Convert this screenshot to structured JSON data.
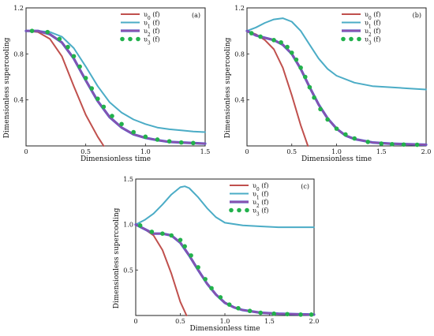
{
  "colors": {
    "v0": "#c0504d",
    "v1": "#4bacc6",
    "v2_outer": "#5a5ac8",
    "v2_inner": "#9b4fa5",
    "v3": "#22b14c"
  },
  "chart_data": [
    {
      "type": "line",
      "panel_label": "(a)",
      "xlabel": "Dimensionless time",
      "ylabel": "Dimensionless supercooling",
      "xlim": [
        0,
        1.5
      ],
      "ylim": [
        0,
        1.2
      ],
      "xticks": [
        0,
        0.5,
        1.0,
        1.5
      ],
      "xtick_labels": [
        "0",
        "0.5",
        "1.0",
        "1.5"
      ],
      "yticks": [
        0.4,
        0.8,
        1.2
      ],
      "ytick_labels": [
        "0.4",
        "0.8",
        "1.2"
      ],
      "legend_position": "top-right",
      "series": [
        {
          "name": "υ0 (f)",
          "style": "line",
          "color_key": "v0",
          "x": [
            0,
            0.1,
            0.2,
            0.3,
            0.4,
            0.5,
            0.6,
            0.65
          ],
          "y": [
            1.0,
            0.99,
            0.93,
            0.78,
            0.52,
            0.27,
            0.08,
            0.0
          ]
        },
        {
          "name": "υ1 (f)",
          "style": "line",
          "color_key": "v1",
          "x": [
            0,
            0.1,
            0.2,
            0.3,
            0.4,
            0.5,
            0.6,
            0.7,
            0.8,
            0.9,
            1.0,
            1.1,
            1.2,
            1.3,
            1.4,
            1.5
          ],
          "y": [
            1.0,
            1.0,
            0.99,
            0.95,
            0.85,
            0.69,
            0.52,
            0.38,
            0.29,
            0.23,
            0.19,
            0.16,
            0.145,
            0.135,
            0.125,
            0.12
          ]
        },
        {
          "name": "υ2 (f)",
          "style": "line",
          "color_key": "v2",
          "x": [
            0,
            0.1,
            0.2,
            0.3,
            0.4,
            0.5,
            0.6,
            0.7,
            0.8,
            0.9,
            1.0,
            1.1,
            1.2,
            1.3,
            1.4,
            1.5
          ],
          "y": [
            1.0,
            1.0,
            0.97,
            0.9,
            0.76,
            0.57,
            0.39,
            0.25,
            0.16,
            0.1,
            0.07,
            0.05,
            0.035,
            0.03,
            0.025,
            0.02
          ]
        },
        {
          "name": "υ3 (f)",
          "style": "dots",
          "color_key": "v3",
          "x": [
            0.05,
            0.18,
            0.28,
            0.35,
            0.4,
            0.45,
            0.5,
            0.55,
            0.6,
            0.65,
            0.72,
            0.8,
            0.9,
            1.0,
            1.1,
            1.2,
            1.3,
            1.4
          ],
          "y": [
            1.0,
            0.99,
            0.93,
            0.86,
            0.78,
            0.69,
            0.59,
            0.5,
            0.41,
            0.34,
            0.26,
            0.19,
            0.12,
            0.08,
            0.055,
            0.04,
            0.03,
            0.025
          ]
        }
      ]
    },
    {
      "type": "line",
      "panel_label": "(b)",
      "xlabel": "Dimensionless time",
      "ylabel": "Dimensionless supercooling",
      "xlim": [
        0,
        2.0
      ],
      "ylim": [
        0,
        1.2
      ],
      "xticks": [
        0,
        0.5,
        1.0,
        1.5,
        2.0
      ],
      "xtick_labels": [
        "0",
        "0.5",
        "1.0",
        "1.5",
        "2.0"
      ],
      "yticks": [
        0.4,
        0.8,
        1.2
      ],
      "ytick_labels": [
        "0.4",
        "0.8",
        "1.2"
      ],
      "legend_position": "top-right",
      "series": [
        {
          "name": "υ0 (f)",
          "style": "line",
          "color_key": "v0",
          "x": [
            0,
            0.1,
            0.2,
            0.3,
            0.4,
            0.5,
            0.6,
            0.68
          ],
          "y": [
            1.0,
            0.97,
            0.92,
            0.84,
            0.68,
            0.44,
            0.18,
            0.0
          ]
        },
        {
          "name": "υ1 (f)",
          "style": "line",
          "color_key": "v1",
          "x": [
            0,
            0.1,
            0.2,
            0.3,
            0.4,
            0.5,
            0.6,
            0.7,
            0.8,
            0.9,
            1.0,
            1.2,
            1.4,
            1.6,
            1.8,
            2.0
          ],
          "y": [
            1.0,
            1.03,
            1.07,
            1.1,
            1.11,
            1.08,
            1.0,
            0.88,
            0.76,
            0.67,
            0.61,
            0.55,
            0.52,
            0.51,
            0.5,
            0.49
          ]
        },
        {
          "name": "υ2 (f)",
          "style": "line",
          "color_key": "v2",
          "x": [
            0,
            0.1,
            0.2,
            0.3,
            0.4,
            0.5,
            0.6,
            0.7,
            0.8,
            0.9,
            1.0,
            1.1,
            1.2,
            1.4,
            1.6,
            1.8,
            2.0
          ],
          "y": [
            1.0,
            0.96,
            0.94,
            0.92,
            0.88,
            0.8,
            0.67,
            0.51,
            0.36,
            0.24,
            0.15,
            0.09,
            0.06,
            0.03,
            0.02,
            0.015,
            0.01
          ]
        },
        {
          "name": "υ3 (f)",
          "style": "dots",
          "color_key": "v3",
          "x": [
            0.05,
            0.15,
            0.3,
            0.38,
            0.45,
            0.5,
            0.55,
            0.6,
            0.65,
            0.7,
            0.75,
            0.82,
            0.9,
            1.0,
            1.1,
            1.2,
            1.35,
            1.5,
            1.62,
            1.75,
            1.9
          ],
          "y": [
            0.98,
            0.95,
            0.92,
            0.9,
            0.86,
            0.81,
            0.75,
            0.68,
            0.6,
            0.51,
            0.42,
            0.32,
            0.23,
            0.15,
            0.1,
            0.065,
            0.035,
            0.02,
            0.015,
            0.012,
            0.01
          ]
        }
      ]
    },
    {
      "type": "line",
      "panel_label": "(c)",
      "xlabel": "Dimensionless time",
      "ylabel": "Dimensionless supercooling",
      "xlim": [
        0,
        2.0
      ],
      "ylim": [
        0,
        1.5
      ],
      "xticks": [
        0,
        0.5,
        1.0,
        1.5,
        2.0
      ],
      "xtick_labels": [
        "0",
        "0.5",
        "1.0",
        "1.5",
        "2.0"
      ],
      "yticks": [
        0.5,
        1.0,
        1.5
      ],
      "ytick_labels": [
        "0.5",
        "1.0",
        "1.5"
      ],
      "legend_position": "top-right",
      "series": [
        {
          "name": "υ0 (f)",
          "style": "line",
          "color_key": "v0",
          "x": [
            0,
            0.1,
            0.2,
            0.3,
            0.4,
            0.5,
            0.57
          ],
          "y": [
            1.0,
            0.95,
            0.88,
            0.72,
            0.46,
            0.15,
            0.0
          ]
        },
        {
          "name": "υ1 (f)",
          "style": "line",
          "color_key": "v1",
          "x": [
            0,
            0.1,
            0.2,
            0.3,
            0.4,
            0.5,
            0.55,
            0.6,
            0.7,
            0.8,
            0.9,
            1.0,
            1.2,
            1.4,
            1.6,
            1.8,
            2.0
          ],
          "y": [
            1.0,
            1.05,
            1.12,
            1.22,
            1.33,
            1.41,
            1.42,
            1.4,
            1.3,
            1.18,
            1.08,
            1.02,
            0.99,
            0.98,
            0.97,
            0.97,
            0.97
          ]
        },
        {
          "name": "υ2 (f)",
          "style": "line",
          "color_key": "v2",
          "x": [
            0,
            0.1,
            0.2,
            0.3,
            0.4,
            0.5,
            0.6,
            0.7,
            0.8,
            0.9,
            1.0,
            1.1,
            1.2,
            1.4,
            1.6,
            1.8,
            2.0
          ],
          "y": [
            1.0,
            0.95,
            0.9,
            0.9,
            0.88,
            0.8,
            0.66,
            0.5,
            0.35,
            0.23,
            0.14,
            0.09,
            0.06,
            0.03,
            0.02,
            0.015,
            0.01
          ]
        },
        {
          "name": "υ3 (f)",
          "style": "dots",
          "color_key": "v3",
          "x": [
            0.05,
            0.18,
            0.3,
            0.4,
            0.5,
            0.55,
            0.62,
            0.7,
            0.78,
            0.85,
            0.95,
            1.05,
            1.15,
            1.28,
            1.4,
            1.55,
            1.7,
            1.85,
            1.97
          ],
          "y": [
            0.99,
            0.92,
            0.9,
            0.88,
            0.83,
            0.76,
            0.66,
            0.53,
            0.4,
            0.3,
            0.2,
            0.12,
            0.08,
            0.05,
            0.03,
            0.02,
            0.015,
            0.01,
            0.01
          ]
        }
      ]
    }
  ]
}
